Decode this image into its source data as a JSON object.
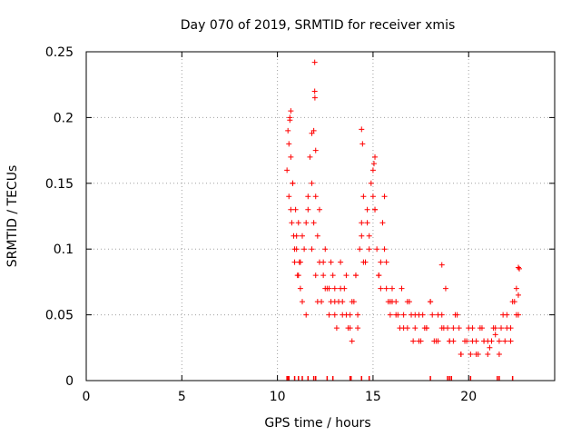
{
  "chart_data": {
    "type": "scatter",
    "title": "Day 070 of 2019, SRMTID for receiver xmis",
    "xlabel": "GPS time / hours",
    "ylabel": "SRMTID / TECUs",
    "xlim": [
      0,
      24.5
    ],
    "ylim": [
      0,
      0.25
    ],
    "xticks": [
      0,
      5,
      10,
      15,
      20
    ],
    "xtick_labels": [
      "0",
      "5",
      "10",
      "15",
      "20"
    ],
    "yticks": [
      0,
      0.05,
      0.1,
      0.15,
      0.2,
      0.25
    ],
    "ytick_labels": [
      "0",
      "0.05",
      "0.1",
      "0.15",
      "0.2",
      "0.25"
    ],
    "grid": true,
    "marker": "+",
    "series": [
      {
        "name": "SRMTID",
        "color": "#ff0000",
        "x": [
          10.5,
          10.55,
          10.6,
          10.65,
          10.7,
          10.75,
          10.8,
          10.85,
          10.9,
          10.95,
          11.0,
          11.05,
          11.1,
          11.15,
          11.2,
          11.3,
          11.4,
          11.5,
          11.6,
          11.7,
          11.8,
          11.9,
          11.95,
          12.0,
          12.1,
          12.2,
          12.3,
          12.4,
          12.5,
          12.6,
          12.7,
          12.8,
          12.9,
          13.0,
          13.1,
          13.2,
          13.3,
          13.4,
          13.5,
          13.6,
          13.7,
          13.8,
          13.9,
          14.0,
          14.1,
          14.2,
          14.3,
          14.4,
          14.5,
          14.6,
          14.7,
          14.8,
          14.9,
          15.0,
          15.1,
          15.2,
          15.3,
          15.4,
          15.5,
          15.6,
          15.7,
          15.8,
          15.9,
          16.0,
          16.2,
          16.4,
          16.6,
          16.8,
          17.0,
          17.2,
          17.4,
          17.6,
          17.8,
          18.0,
          18.2,
          18.4,
          18.6,
          18.8,
          19.0,
          19.2,
          19.4,
          19.6,
          19.8,
          20.0,
          20.2,
          20.4,
          20.6,
          20.8,
          21.0,
          21.2,
          21.4,
          21.6,
          21.8,
          22.0,
          22.2,
          22.4,
          22.5,
          22.6,
          22.65,
          10.6,
          10.8,
          11.0,
          11.2,
          11.5,
          11.8,
          12.0,
          12.2,
          12.5,
          12.8,
          13.0,
          13.3,
          13.6,
          13.9,
          14.2,
          14.5,
          14.8,
          15.1,
          15.4,
          15.7,
          16.0,
          16.3,
          16.6,
          16.9,
          17.2,
          17.5,
          17.8,
          18.1,
          18.4,
          18.7,
          19.0,
          19.3,
          19.6,
          19.9,
          20.2,
          20.5,
          20.8,
          21.1,
          21.4,
          21.7,
          22.0,
          22.3,
          22.6,
          10.7,
          10.9,
          11.1,
          11.3,
          11.6,
          11.9,
          12.1,
          12.4,
          12.7,
          13.0,
          13.4,
          13.8,
          14.1,
          14.4,
          14.7,
          15.0,
          15.3,
          15.6,
          15.9,
          16.2,
          16.5,
          16.8,
          17.1,
          17.4,
          17.7,
          18.0,
          18.3,
          18.6,
          18.9,
          19.2,
          19.5,
          19.8,
          20.1,
          20.4,
          20.7,
          21.0,
          21.3,
          21.6,
          21.9,
          22.2,
          22.5,
          11.95,
          11.96,
          14.4,
          14.45,
          15.05,
          15.1,
          10.65,
          10.7,
          11.8,
          12.0,
          18.6,
          22.6
        ],
        "y": [
          0.16,
          0.19,
          0.14,
          0.2,
          0.17,
          0.12,
          0.15,
          0.11,
          0.09,
          0.13,
          0.1,
          0.08,
          0.12,
          0.09,
          0.07,
          0.06,
          0.1,
          0.05,
          0.13,
          0.17,
          0.15,
          0.19,
          0.22,
          0.14,
          0.11,
          0.09,
          0.06,
          0.08,
          0.1,
          0.07,
          0.05,
          0.06,
          0.08,
          0.07,
          0.04,
          0.06,
          0.09,
          0.05,
          0.07,
          0.08,
          0.04,
          0.05,
          0.03,
          0.06,
          0.08,
          0.05,
          0.1,
          0.12,
          0.14,
          0.09,
          0.13,
          0.11,
          0.15,
          0.16,
          0.13,
          0.1,
          0.08,
          0.07,
          0.12,
          0.14,
          0.09,
          0.06,
          0.05,
          0.07,
          0.06,
          0.04,
          0.05,
          0.06,
          0.05,
          0.04,
          0.03,
          0.05,
          0.04,
          0.06,
          0.03,
          0.05,
          0.04,
          0.07,
          0.03,
          0.04,
          0.05,
          0.02,
          0.03,
          0.04,
          0.03,
          0.02,
          0.04,
          0.03,
          0.02,
          0.03,
          0.04,
          0.03,
          0.05,
          0.04,
          0.03,
          0.06,
          0.07,
          0.065,
          0.085,
          0.18,
          0.15,
          0.11,
          0.09,
          0.12,
          0.1,
          0.08,
          0.13,
          0.07,
          0.09,
          0.06,
          0.07,
          0.05,
          0.06,
          0.04,
          0.09,
          0.1,
          0.13,
          0.09,
          0.07,
          0.06,
          0.05,
          0.04,
          0.06,
          0.05,
          0.03,
          0.04,
          0.05,
          0.03,
          0.04,
          0.03,
          0.05,
          0.02,
          0.03,
          0.04,
          0.02,
          0.03,
          0.025,
          0.035,
          0.04,
          0.05,
          0.06,
          0.05,
          0.13,
          0.1,
          0.08,
          0.11,
          0.14,
          0.12,
          0.06,
          0.09,
          0.07,
          0.05,
          0.06,
          0.04,
          0.08,
          0.11,
          0.12,
          0.14,
          0.08,
          0.1,
          0.06,
          0.05,
          0.07,
          0.04,
          0.03,
          0.05,
          0.04,
          0.06,
          0.03,
          0.05,
          0.04,
          0.03,
          0.04,
          0.03,
          0.02,
          0.03,
          0.04,
          0.03,
          0.04,
          0.02,
          0.03,
          0.04,
          0.05,
          0.242,
          0.215,
          0.191,
          0.18,
          0.165,
          0.17,
          0.198,
          0.205,
          0.188,
          0.175,
          0.088,
          0.086
        ]
      }
    ],
    "rug_x": [
      10.5,
      10.55,
      10.6,
      10.9,
      11.1,
      11.3,
      11.6,
      11.9,
      12.0,
      12.6,
      12.9,
      13.8,
      13.85,
      14.4,
      14.8,
      18.0,
      18.9,
      19.0,
      19.1,
      20.1,
      21.5,
      21.6,
      22.3
    ]
  }
}
